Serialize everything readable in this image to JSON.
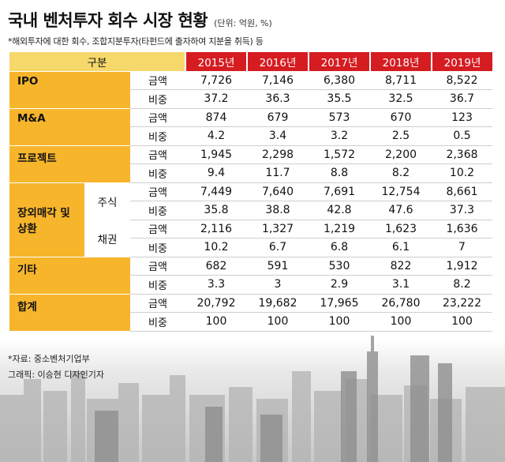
{
  "title": "국내 벤처투자 회수 시장 현황",
  "unit": "(단위: 억원, %)",
  "note": "*해외투자에 대한 회수, 조합지분투자(타펀드에 출자하여 지분을 취득) 등",
  "header": {
    "category_label": "구분",
    "years": [
      "2015년",
      "2016년",
      "2017년",
      "2018년",
      "2019년"
    ]
  },
  "rows": [
    {
      "category": "IPO",
      "sub": "",
      "metric": "금액",
      "values": [
        "7,726",
        "7,146",
        "6,380",
        "8,711",
        "8,522"
      ]
    },
    {
      "category": "IPO",
      "sub": "",
      "metric": "비중",
      "values": [
        "37.2",
        "36.3",
        "35.5",
        "32.5",
        "36.7"
      ]
    },
    {
      "category": "M&A",
      "sub": "",
      "metric": "금액",
      "values": [
        "874",
        "679",
        "573",
        "670",
        "123"
      ]
    },
    {
      "category": "M&A",
      "sub": "",
      "metric": "비중",
      "values": [
        "4.2",
        "3.4",
        "3.2",
        "2.5",
        "0.5"
      ]
    },
    {
      "category": "프로젝트",
      "sub": "",
      "metric": "금액",
      "values": [
        "1,945",
        "2,298",
        "1,572",
        "2,200",
        "2,368"
      ]
    },
    {
      "category": "프로젝트",
      "sub": "",
      "metric": "비중",
      "values": [
        "9.4",
        "11.7",
        "8.8",
        "8.2",
        "10.2"
      ]
    },
    {
      "category": "장외매각 및 상환",
      "sub": "주식",
      "metric": "금액",
      "values": [
        "7,449",
        "7,640",
        "7,691",
        "12,754",
        "8,661"
      ]
    },
    {
      "category": "장외매각 및 상환",
      "sub": "주식",
      "metric": "비중",
      "values": [
        "35.8",
        "38.8",
        "42.8",
        "47.6",
        "37.3"
      ]
    },
    {
      "category": "장외매각 및 상환",
      "sub": "채권",
      "metric": "금액",
      "values": [
        "2,116",
        "1,327",
        "1,219",
        "1,623",
        "1,636"
      ]
    },
    {
      "category": "장외매각 및 상환",
      "sub": "채권",
      "metric": "비중",
      "values": [
        "10.2",
        "6.7",
        "6.8",
        "6.1",
        "7"
      ]
    },
    {
      "category": "기타",
      "sub": "",
      "metric": "금액",
      "values": [
        "682",
        "591",
        "530",
        "822",
        "1,912"
      ]
    },
    {
      "category": "기타",
      "sub": "",
      "metric": "비중",
      "values": [
        "3.3",
        "3",
        "2.9",
        "3.1",
        "8.2"
      ]
    },
    {
      "category": "합계",
      "sub": "",
      "metric": "금액",
      "values": [
        "20,792",
        "19,682",
        "17,965",
        "26,780",
        "23,222"
      ]
    },
    {
      "category": "합계",
      "sub": "",
      "metric": "비중",
      "values": [
        "100",
        "100",
        "100",
        "100",
        "100"
      ]
    }
  ],
  "categories_display": {
    "ipo": "IPO",
    "ma": "M&A",
    "project": "프로젝트",
    "otc_line1": "장외매각 및",
    "otc_line2": "상환",
    "stock": "주식",
    "bond": "채권",
    "etc": "기타",
    "total": "합계"
  },
  "source": "*자료: 중소벤처기업부",
  "graphic_credit": "그래픽: 이승현 디자인기자",
  "colors": {
    "header_red": "#d51c21",
    "header_yellow": "#f6d86b",
    "category_orange": "#f7b52c"
  },
  "chart_data": {
    "type": "table",
    "title": "국내 벤처투자 회수 시장 현황",
    "unit": "(단위: 억원, %)",
    "columns": [
      "2015년",
      "2016년",
      "2017년",
      "2018년",
      "2019년"
    ],
    "series": [
      {
        "name": "IPO 금액",
        "values": [
          7726,
          7146,
          6380,
          8711,
          8522
        ]
      },
      {
        "name": "IPO 비중",
        "values": [
          37.2,
          36.3,
          35.5,
          32.5,
          36.7
        ]
      },
      {
        "name": "M&A 금액",
        "values": [
          874,
          679,
          573,
          670,
          123
        ]
      },
      {
        "name": "M&A 비중",
        "values": [
          4.2,
          3.4,
          3.2,
          2.5,
          0.5
        ]
      },
      {
        "name": "프로젝트 금액",
        "values": [
          1945,
          2298,
          1572,
          2200,
          2368
        ]
      },
      {
        "name": "프로젝트 비중",
        "values": [
          9.4,
          11.7,
          8.8,
          8.2,
          10.2
        ]
      },
      {
        "name": "장외매각 및 상환 주식 금액",
        "values": [
          7449,
          7640,
          7691,
          12754,
          8661
        ]
      },
      {
        "name": "장외매각 및 상환 주식 비중",
        "values": [
          35.8,
          38.8,
          42.8,
          47.6,
          37.3
        ]
      },
      {
        "name": "장외매각 및 상환 채권 금액",
        "values": [
          2116,
          1327,
          1219,
          1623,
          1636
        ]
      },
      {
        "name": "장외매각 및 상환 채권 비중",
        "values": [
          10.2,
          6.7,
          6.8,
          6.1,
          7
        ]
      },
      {
        "name": "기타 금액",
        "values": [
          682,
          591,
          530,
          822,
          1912
        ]
      },
      {
        "name": "기타 비중",
        "values": [
          3.3,
          3,
          2.9,
          3.1,
          8.2
        ]
      },
      {
        "name": "합계 금액",
        "values": [
          20792,
          19682,
          17965,
          26780,
          23222
        ]
      },
      {
        "name": "합계 비중",
        "values": [
          100,
          100,
          100,
          100,
          100
        ]
      }
    ]
  }
}
